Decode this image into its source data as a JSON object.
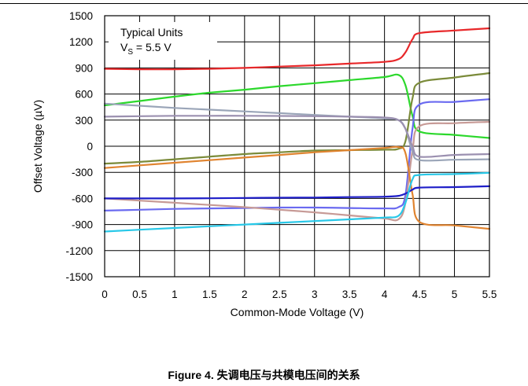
{
  "caption": "Figure 4. 失调电压与共模电压间的关系",
  "chart_data": {
    "type": "line",
    "title": "",
    "xlabel": "Common-Mode Voltage (V)",
    "ylabel": "Offset Voltage (µV)",
    "xlim": [
      0,
      5.5
    ],
    "ylim": [
      -1500,
      1500
    ],
    "xticks": [
      "0",
      "0.5",
      "1",
      "1.5",
      "2",
      "2.5",
      "3",
      "3.5",
      "4",
      "4.5",
      "5",
      "5.5"
    ],
    "yticks": [
      "1500",
      "1200",
      "900",
      "600",
      "300",
      "0",
      "-300",
      "-600",
      "-900",
      "-1200",
      "-1500"
    ],
    "grid": true,
    "annotation": {
      "line1": "Typical Units",
      "line2_prefix": "V",
      "line2_sub": "S",
      "line2_suffix": " = 5.5 V"
    },
    "series": [
      {
        "color": "#e8282a",
        "x": [
          0,
          0.5,
          1,
          1.5,
          2,
          2.5,
          3,
          3.5,
          4,
          4.2,
          4.3,
          4.4,
          4.5,
          5,
          5.5
        ],
        "y": [
          890,
          885,
          885,
          890,
          900,
          915,
          930,
          950,
          970,
          1000,
          1080,
          1230,
          1300,
          1330,
          1355
        ]
      },
      {
        "color": "#2cd82c",
        "x": [
          0,
          0.5,
          1,
          1.5,
          2,
          2.5,
          3,
          3.5,
          4,
          4.2,
          4.3,
          4.4,
          4.5,
          5,
          5.5
        ],
        "y": [
          470,
          520,
          570,
          615,
          650,
          690,
          725,
          760,
          795,
          820,
          700,
          350,
          170,
          130,
          95
        ]
      },
      {
        "color": "#7b8b3a",
        "x": [
          0,
          0.5,
          1,
          1.5,
          2,
          2.5,
          3,
          3.5,
          4,
          4.2,
          4.3,
          4.4,
          4.5,
          5,
          5.5
        ],
        "y": [
          -200,
          -180,
          -150,
          -120,
          -90,
          -70,
          -50,
          -45,
          -40,
          -30,
          60,
          550,
          730,
          790,
          840
        ]
      },
      {
        "color": "#6a6af0",
        "x": [
          0,
          0.5,
          1,
          1.5,
          2,
          2.5,
          3,
          3.5,
          4,
          4.2,
          4.3,
          4.4,
          4.5,
          5,
          5.5
        ],
        "y": [
          -740,
          -730,
          -720,
          -715,
          -710,
          -705,
          -705,
          -710,
          -715,
          -700,
          -560,
          200,
          480,
          510,
          540
        ]
      },
      {
        "color": "#c79a96",
        "x": [
          0,
          0.5,
          1,
          1.5,
          2,
          2.5,
          3,
          3.5,
          4,
          4.2,
          4.3,
          4.4,
          4.5,
          5,
          5.5
        ],
        "y": [
          -600,
          -625,
          -650,
          -675,
          -700,
          -730,
          -760,
          -795,
          -830,
          -840,
          -650,
          -50,
          230,
          265,
          280
        ]
      },
      {
        "color": "#9aa5b8",
        "x": [
          0,
          0.5,
          1,
          1.5,
          2,
          2.5,
          3,
          3.5,
          4,
          4.2,
          4.3,
          4.4,
          4.5,
          5,
          5.5
        ],
        "y": [
          490,
          465,
          440,
          420,
          400,
          380,
          360,
          340,
          320,
          300,
          200,
          -60,
          -160,
          -155,
          -150
        ]
      },
      {
        "color": "#9b90b0",
        "x": [
          0,
          0.5,
          1,
          1.5,
          2,
          2.5,
          3,
          3.5,
          4,
          4.2,
          4.3,
          4.4,
          4.5,
          5,
          5.5
        ],
        "y": [
          340,
          345,
          350,
          350,
          350,
          348,
          345,
          340,
          330,
          300,
          200,
          0,
          -120,
          -100,
          -90
        ]
      },
      {
        "color": "#e08430",
        "x": [
          0,
          0.5,
          1,
          1.5,
          2,
          2.5,
          3,
          3.5,
          4,
          4.2,
          4.3,
          4.4,
          4.5,
          5,
          5.5
        ],
        "y": [
          -250,
          -220,
          -190,
          -160,
          -130,
          -100,
          -70,
          -45,
          -20,
          -10,
          -80,
          -550,
          -870,
          -910,
          -950
        ]
      },
      {
        "color": "#1e1ec8",
        "x": [
          0,
          0.5,
          1,
          1.5,
          2,
          2.5,
          3,
          3.5,
          4,
          4.2,
          4.3,
          4.4,
          4.5,
          5,
          5.5
        ],
        "y": [
          -600,
          -600,
          -600,
          -598,
          -595,
          -592,
          -590,
          -585,
          -580,
          -570,
          -545,
          -500,
          -475,
          -470,
          -460
        ]
      },
      {
        "color": "#28c8e8",
        "x": [
          0,
          0.5,
          1,
          1.5,
          2,
          2.5,
          3,
          3.5,
          4,
          4.2,
          4.3,
          4.4,
          4.5,
          5,
          5.5
        ],
        "y": [
          -980,
          -960,
          -940,
          -920,
          -900,
          -880,
          -860,
          -840,
          -820,
          -800,
          -650,
          -380,
          -330,
          -320,
          -305
        ]
      }
    ]
  }
}
